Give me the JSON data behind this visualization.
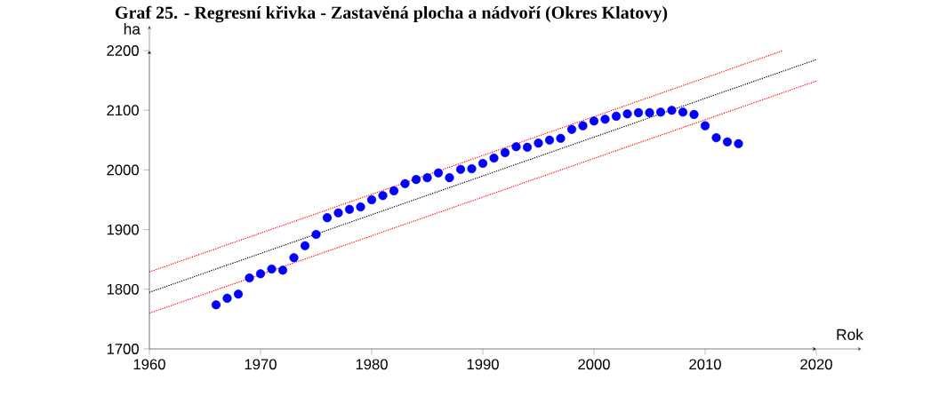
{
  "chart_data": {
    "type": "scatter",
    "title": "Graf 25. - Regresní křivka - Zastavěná plocha a nádvoří (Okres Klatovy)",
    "xlabel": "Rok",
    "ylabel": "ha",
    "xlim": [
      1960,
      2020
    ],
    "xticks": [
      1960,
      1970,
      1980,
      1990,
      2000,
      2010,
      2020
    ],
    "ylim": [
      1700,
      2200
    ],
    "yticks": [
      1700,
      1800,
      1900,
      2000,
      2100,
      2200
    ],
    "grid": false,
    "marker": "circle",
    "series": [
      {
        "color": "#0000ff",
        "x": [
          1966,
          1967,
          1968,
          1969,
          1970,
          1971,
          1972,
          1973,
          1974,
          1975,
          1976,
          1977,
          1978,
          1979,
          1980,
          1981,
          1982,
          1983,
          1984,
          1985,
          1986,
          1987,
          1988,
          1989,
          1990,
          1991,
          1992,
          1993,
          1994,
          1995,
          1996,
          1997,
          1998,
          1999,
          2000,
          2001,
          2002,
          2003,
          2004,
          2005,
          2006,
          2007,
          2008,
          2009,
          2010,
          2011,
          2012,
          2013
        ],
        "values": [
          1774,
          1785,
          1792,
          1819,
          1826,
          1834,
          1832,
          1853,
          1873,
          1892,
          1920,
          1928,
          1934,
          1938,
          1950,
          1957,
          1965,
          1977,
          1984,
          1987,
          1995,
          1987,
          2001,
          2002,
          2011,
          2020,
          2029,
          2039,
          2038,
          2045,
          2050,
          2053,
          2068,
          2074,
          2082,
          2085,
          2090,
          2094,
          2096,
          2096,
          2097,
          2100,
          2097,
          2093,
          2074,
          2054,
          2047,
          2044
        ]
      },
      {
        "type": "line",
        "color": "#000000",
        "line_style": "dotted",
        "marker": "none",
        "x": [
          1960,
          2020
        ],
        "values": [
          1795,
          2185
        ]
      },
      {
        "type": "line",
        "color": "#ff0000",
        "line_style": "dotted",
        "marker": "none",
        "x": [
          1960,
          2017
        ],
        "values": [
          1829,
          2200
        ]
      },
      {
        "type": "line",
        "color": "#ff0000",
        "line_style": "dotted",
        "marker": "none",
        "x": [
          1960,
          2020
        ],
        "values": [
          1760,
          2149
        ]
      }
    ]
  }
}
